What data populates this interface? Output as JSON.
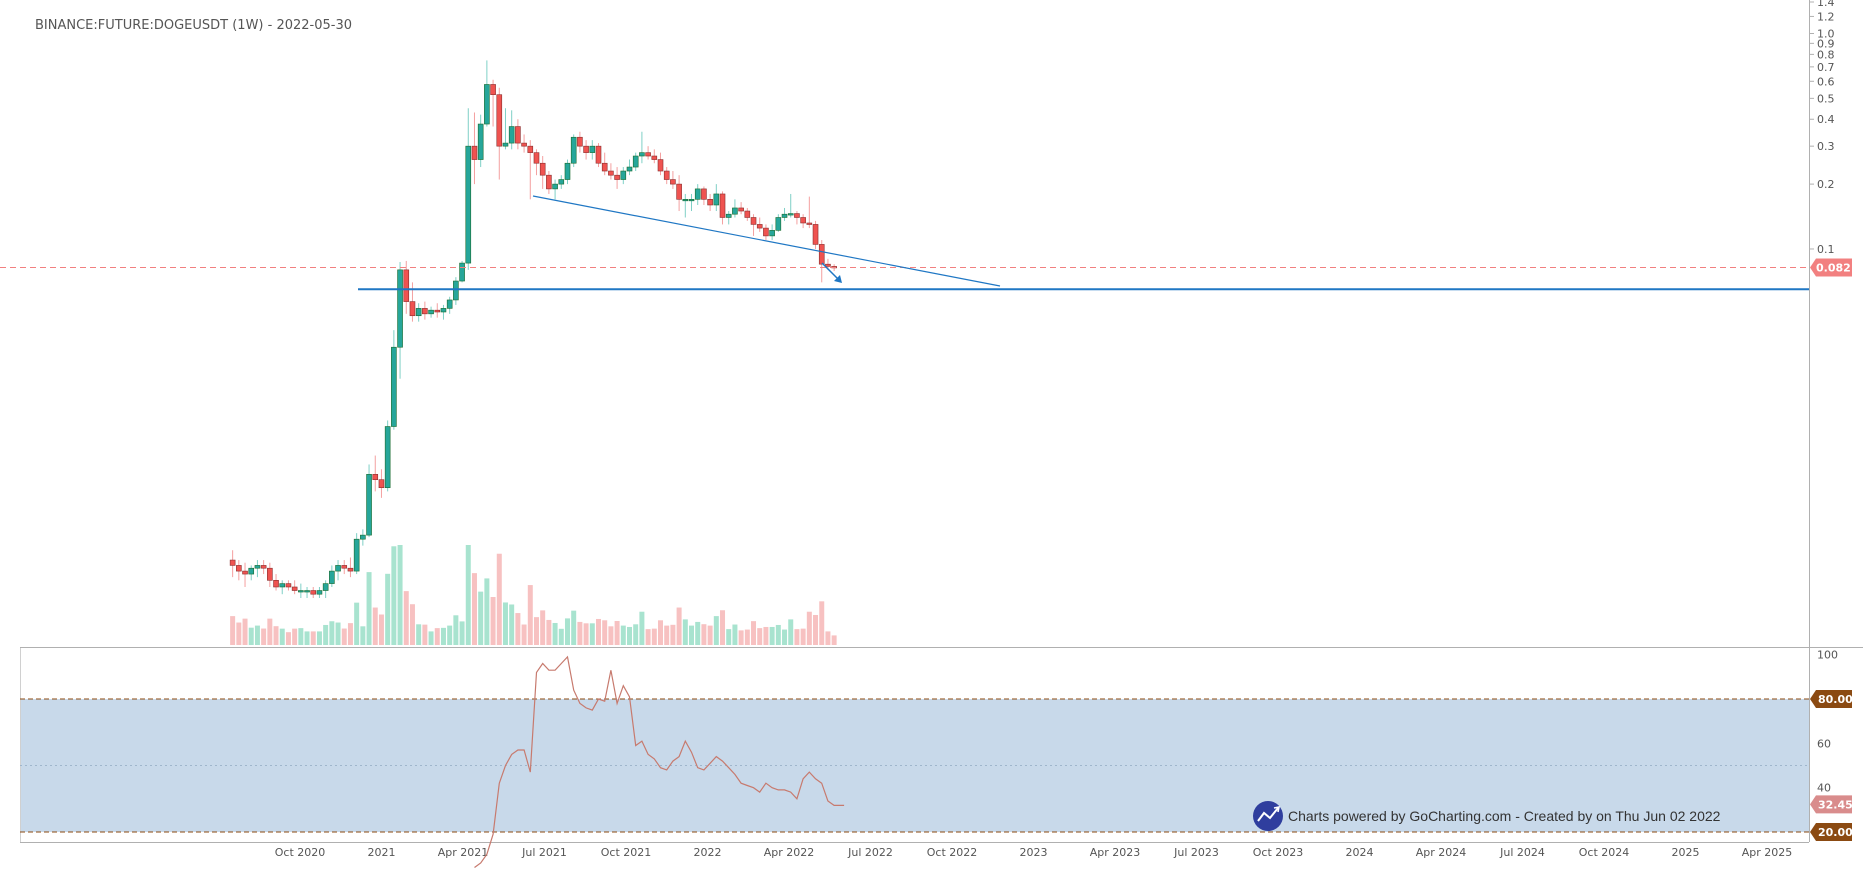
{
  "chart_data": [
    {
      "type": "candlestick",
      "title": "BINANCE:FUTURE:DOGEUSDT (1W) - 2022-05-30",
      "price_scale": "log",
      "ylim": [
        0.0015,
        1.4
      ],
      "y_ticks": [
        "1.4",
        "1.2",
        "1.0",
        "0.9",
        "0.8",
        "0.7",
        "0.6",
        "0.5",
        "0.4",
        "0.3",
        "0.2",
        "0.1"
      ],
      "x_ticks": [
        "Oct 2020",
        "2021",
        "Apr 2021",
        "Jul 2021",
        "Oct 2021",
        "2022",
        "Apr 2022",
        "Jul 2022",
        "Oct 2022",
        "2023",
        "Apr 2023",
        "Jul 2023",
        "Oct 2023",
        "2024",
        "Apr 2024",
        "Jul 2024",
        "Oct 2024",
        "2025",
        "Apr 2025"
      ],
      "last_price_label": "0.082",
      "support_level": 0.065,
      "colors": {
        "up": "#26a69a",
        "down": "#ef5350",
        "line": "#1f77c4",
        "last_price": "#f28080"
      },
      "candles": [
        {
          "t": "2020-07-13",
          "o": 0.0036,
          "h": 0.004,
          "l": 0.003,
          "c": 0.0034
        },
        {
          "t": "2020-07-20",
          "o": 0.0034,
          "h": 0.0036,
          "l": 0.0029,
          "c": 0.0032
        },
        {
          "t": "2020-07-27",
          "o": 0.0032,
          "h": 0.0035,
          "l": 0.0027,
          "c": 0.0031
        },
        {
          "t": "2020-08-03",
          "o": 0.0031,
          "h": 0.0034,
          "l": 0.0029,
          "c": 0.0033
        },
        {
          "t": "2020-08-10",
          "o": 0.0033,
          "h": 0.0036,
          "l": 0.003,
          "c": 0.0034
        },
        {
          "t": "2020-08-17",
          "o": 0.0034,
          "h": 0.0036,
          "l": 0.0031,
          "c": 0.0033
        },
        {
          "t": "2020-08-24",
          "o": 0.0033,
          "h": 0.0035,
          "l": 0.0027,
          "c": 0.0029
        },
        {
          "t": "2020-08-31",
          "o": 0.0029,
          "h": 0.0031,
          "l": 0.0026,
          "c": 0.0027
        },
        {
          "t": "2020-09-07",
          "o": 0.0027,
          "h": 0.0029,
          "l": 0.0025,
          "c": 0.0028
        },
        {
          "t": "2020-09-14",
          "o": 0.0028,
          "h": 0.0029,
          "l": 0.0026,
          "c": 0.0027
        },
        {
          "t": "2020-09-21",
          "o": 0.0027,
          "h": 0.0029,
          "l": 0.0025,
          "c": 0.0026
        },
        {
          "t": "2020-09-28",
          "o": 0.0026,
          "h": 0.0028,
          "l": 0.0024,
          "c": 0.0026
        },
        {
          "t": "2020-10-05",
          "o": 0.0026,
          "h": 0.0027,
          "l": 0.0024,
          "c": 0.0026
        },
        {
          "t": "2020-10-12",
          "o": 0.0026,
          "h": 0.0027,
          "l": 0.0024,
          "c": 0.0025
        },
        {
          "t": "2020-10-19",
          "o": 0.0025,
          "h": 0.0027,
          "l": 0.0024,
          "c": 0.0026
        },
        {
          "t": "2020-10-26",
          "o": 0.0026,
          "h": 0.0029,
          "l": 0.0024,
          "c": 0.0028
        },
        {
          "t": "2020-11-02",
          "o": 0.0028,
          "h": 0.0034,
          "l": 0.0027,
          "c": 0.0032
        },
        {
          "t": "2020-11-09",
          "o": 0.0032,
          "h": 0.0036,
          "l": 0.0029,
          "c": 0.0034
        },
        {
          "t": "2020-11-16",
          "o": 0.0034,
          "h": 0.0036,
          "l": 0.0031,
          "c": 0.0033
        },
        {
          "t": "2020-11-23",
          "o": 0.0033,
          "h": 0.0037,
          "l": 0.003,
          "c": 0.0032
        },
        {
          "t": "2020-11-30",
          "o": 0.0032,
          "h": 0.0048,
          "l": 0.0031,
          "c": 0.0045
        },
        {
          "t": "2020-12-07",
          "o": 0.0045,
          "h": 0.005,
          "l": 0.0042,
          "c": 0.0047
        },
        {
          "t": "2020-12-14",
          "o": 0.0047,
          "h": 0.01,
          "l": 0.0046,
          "c": 0.009
        },
        {
          "t": "2020-12-21",
          "o": 0.009,
          "h": 0.011,
          "l": 0.0075,
          "c": 0.0085
        },
        {
          "t": "2020-12-28",
          "o": 0.0085,
          "h": 0.0095,
          "l": 0.007,
          "c": 0.0078
        },
        {
          "t": "2021-01-04",
          "o": 0.0078,
          "h": 0.016,
          "l": 0.0075,
          "c": 0.015
        },
        {
          "t": "2021-01-11",
          "o": 0.015,
          "h": 0.042,
          "l": 0.0145,
          "c": 0.035
        },
        {
          "t": "2021-01-18",
          "o": 0.035,
          "h": 0.087,
          "l": 0.025,
          "c": 0.08
        },
        {
          "t": "2021-01-25",
          "o": 0.08,
          "h": 0.088,
          "l": 0.05,
          "c": 0.057
        },
        {
          "t": "2021-02-01",
          "o": 0.057,
          "h": 0.07,
          "l": 0.046,
          "c": 0.049
        },
        {
          "t": "2021-02-08",
          "o": 0.049,
          "h": 0.056,
          "l": 0.046,
          "c": 0.053
        },
        {
          "t": "2021-02-15",
          "o": 0.053,
          "h": 0.057,
          "l": 0.047,
          "c": 0.05
        },
        {
          "t": "2021-02-22",
          "o": 0.05,
          "h": 0.054,
          "l": 0.048,
          "c": 0.052
        },
        {
          "t": "2021-03-01",
          "o": 0.052,
          "h": 0.056,
          "l": 0.048,
          "c": 0.051
        },
        {
          "t": "2021-03-08",
          "o": 0.051,
          "h": 0.055,
          "l": 0.047,
          "c": 0.053
        },
        {
          "t": "2021-03-15",
          "o": 0.053,
          "h": 0.06,
          "l": 0.05,
          "c": 0.058
        },
        {
          "t": "2021-03-22",
          "o": 0.058,
          "h": 0.074,
          "l": 0.055,
          "c": 0.071
        },
        {
          "t": "2021-03-29",
          "o": 0.071,
          "h": 0.088,
          "l": 0.07,
          "c": 0.086
        },
        {
          "t": "2021-04-05",
          "o": 0.086,
          "h": 0.45,
          "l": 0.08,
          "c": 0.3
        },
        {
          "t": "2021-04-12",
          "o": 0.3,
          "h": 0.43,
          "l": 0.2,
          "c": 0.26
        },
        {
          "t": "2021-04-19",
          "o": 0.26,
          "h": 0.42,
          "l": 0.24,
          "c": 0.38
        },
        {
          "t": "2021-04-26",
          "o": 0.38,
          "h": 0.75,
          "l": 0.37,
          "c": 0.58
        },
        {
          "t": "2021-05-03",
          "o": 0.58,
          "h": 0.61,
          "l": 0.37,
          "c": 0.52
        },
        {
          "t": "2021-05-10",
          "o": 0.52,
          "h": 0.56,
          "l": 0.21,
          "c": 0.3
        },
        {
          "t": "2021-05-17",
          "o": 0.3,
          "h": 0.45,
          "l": 0.29,
          "c": 0.31
        },
        {
          "t": "2021-05-24",
          "o": 0.31,
          "h": 0.44,
          "l": 0.29,
          "c": 0.37
        },
        {
          "t": "2021-05-31",
          "o": 0.37,
          "h": 0.4,
          "l": 0.29,
          "c": 0.31
        },
        {
          "t": "2021-06-07",
          "o": 0.31,
          "h": 0.34,
          "l": 0.28,
          "c": 0.3
        },
        {
          "t": "2021-06-14",
          "o": 0.3,
          "h": 0.32,
          "l": 0.17,
          "c": 0.28
        },
        {
          "t": "2021-06-21",
          "o": 0.28,
          "h": 0.29,
          "l": 0.22,
          "c": 0.25
        },
        {
          "t": "2021-06-28",
          "o": 0.25,
          "h": 0.27,
          "l": 0.19,
          "c": 0.22
        },
        {
          "t": "2021-07-05",
          "o": 0.22,
          "h": 0.23,
          "l": 0.18,
          "c": 0.19
        },
        {
          "t": "2021-07-12",
          "o": 0.19,
          "h": 0.21,
          "l": 0.17,
          "c": 0.2
        },
        {
          "t": "2021-07-19",
          "o": 0.2,
          "h": 0.22,
          "l": 0.19,
          "c": 0.21
        },
        {
          "t": "2021-07-26",
          "o": 0.21,
          "h": 0.26,
          "l": 0.2,
          "c": 0.25
        },
        {
          "t": "2021-08-02",
          "o": 0.25,
          "h": 0.34,
          "l": 0.24,
          "c": 0.33
        },
        {
          "t": "2021-08-09",
          "o": 0.33,
          "h": 0.35,
          "l": 0.28,
          "c": 0.3
        },
        {
          "t": "2021-08-16",
          "o": 0.3,
          "h": 0.32,
          "l": 0.26,
          "c": 0.28
        },
        {
          "t": "2021-08-23",
          "o": 0.28,
          "h": 0.32,
          "l": 0.26,
          "c": 0.3
        },
        {
          "t": "2021-08-30",
          "o": 0.3,
          "h": 0.31,
          "l": 0.24,
          "c": 0.25
        },
        {
          "t": "2021-09-06",
          "o": 0.25,
          "h": 0.28,
          "l": 0.22,
          "c": 0.23
        },
        {
          "t": "2021-09-13",
          "o": 0.23,
          "h": 0.25,
          "l": 0.21,
          "c": 0.22
        },
        {
          "t": "2021-09-20",
          "o": 0.22,
          "h": 0.24,
          "l": 0.19,
          "c": 0.21
        },
        {
          "t": "2021-09-27",
          "o": 0.21,
          "h": 0.24,
          "l": 0.2,
          "c": 0.23
        },
        {
          "t": "2021-10-04",
          "o": 0.23,
          "h": 0.26,
          "l": 0.22,
          "c": 0.24
        },
        {
          "t": "2021-10-11",
          "o": 0.24,
          "h": 0.28,
          "l": 0.23,
          "c": 0.27
        },
        {
          "t": "2021-10-18",
          "o": 0.27,
          "h": 0.35,
          "l": 0.25,
          "c": 0.28
        },
        {
          "t": "2021-10-25",
          "o": 0.28,
          "h": 0.3,
          "l": 0.26,
          "c": 0.27
        },
        {
          "t": "2021-11-01",
          "o": 0.27,
          "h": 0.29,
          "l": 0.25,
          "c": 0.26
        },
        {
          "t": "2021-11-08",
          "o": 0.26,
          "h": 0.28,
          "l": 0.22,
          "c": 0.23
        },
        {
          "t": "2021-11-15",
          "o": 0.23,
          "h": 0.24,
          "l": 0.2,
          "c": 0.21
        },
        {
          "t": "2021-11-22",
          "o": 0.21,
          "h": 0.23,
          "l": 0.19,
          "c": 0.2
        },
        {
          "t": "2021-11-29",
          "o": 0.2,
          "h": 0.22,
          "l": 0.15,
          "c": 0.17
        },
        {
          "t": "2021-12-06",
          "o": 0.17,
          "h": 0.18,
          "l": 0.14,
          "c": 0.17
        },
        {
          "t": "2021-12-13",
          "o": 0.17,
          "h": 0.18,
          "l": 0.15,
          "c": 0.17
        },
        {
          "t": "2021-12-20",
          "o": 0.17,
          "h": 0.2,
          "l": 0.16,
          "c": 0.19
        },
        {
          "t": "2021-12-27",
          "o": 0.19,
          "h": 0.195,
          "l": 0.16,
          "c": 0.17
        },
        {
          "t": "2022-01-03",
          "o": 0.17,
          "h": 0.18,
          "l": 0.15,
          "c": 0.16
        },
        {
          "t": "2022-01-10",
          "o": 0.16,
          "h": 0.2,
          "l": 0.15,
          "c": 0.18
        },
        {
          "t": "2022-01-17",
          "o": 0.18,
          "h": 0.185,
          "l": 0.13,
          "c": 0.14
        },
        {
          "t": "2022-01-24",
          "o": 0.14,
          "h": 0.15,
          "l": 0.13,
          "c": 0.145
        },
        {
          "t": "2022-01-31",
          "o": 0.145,
          "h": 0.17,
          "l": 0.14,
          "c": 0.155
        },
        {
          "t": "2022-02-07",
          "o": 0.155,
          "h": 0.165,
          "l": 0.145,
          "c": 0.15
        },
        {
          "t": "2022-02-14",
          "o": 0.15,
          "h": 0.155,
          "l": 0.135,
          "c": 0.14
        },
        {
          "t": "2022-02-21",
          "o": 0.14,
          "h": 0.145,
          "l": 0.115,
          "c": 0.13
        },
        {
          "t": "2022-02-28",
          "o": 0.13,
          "h": 0.14,
          "l": 0.12,
          "c": 0.125
        },
        {
          "t": "2022-03-07",
          "o": 0.125,
          "h": 0.13,
          "l": 0.11,
          "c": 0.115
        },
        {
          "t": "2022-03-14",
          "o": 0.115,
          "h": 0.13,
          "l": 0.11,
          "c": 0.122
        },
        {
          "t": "2022-03-21",
          "o": 0.122,
          "h": 0.145,
          "l": 0.12,
          "c": 0.14
        },
        {
          "t": "2022-03-28",
          "o": 0.14,
          "h": 0.155,
          "l": 0.135,
          "c": 0.145
        },
        {
          "t": "2022-04-04",
          "o": 0.145,
          "h": 0.18,
          "l": 0.14,
          "c": 0.146
        },
        {
          "t": "2022-04-11",
          "o": 0.146,
          "h": 0.15,
          "l": 0.13,
          "c": 0.14
        },
        {
          "t": "2022-04-18",
          "o": 0.14,
          "h": 0.145,
          "l": 0.125,
          "c": 0.132
        },
        {
          "t": "2022-04-25",
          "o": 0.132,
          "h": 0.175,
          "l": 0.125,
          "c": 0.13
        },
        {
          "t": "2022-05-02",
          "o": 0.13,
          "h": 0.135,
          "l": 0.1,
          "c": 0.105
        },
        {
          "t": "2022-05-09",
          "o": 0.105,
          "h": 0.11,
          "l": 0.07,
          "c": 0.085
        },
        {
          "t": "2022-05-16",
          "o": 0.085,
          "h": 0.09,
          "l": 0.08,
          "c": 0.083
        },
        {
          "t": "2022-05-23",
          "o": 0.083,
          "h": 0.085,
          "l": 0.079,
          "c": 0.082
        }
      ]
    },
    {
      "type": "line",
      "series": [
        {
          "values": [
            4,
            6,
            10,
            19,
            42,
            50,
            55,
            57,
            57,
            47,
            92,
            96,
            93,
            93,
            96,
            99,
            84,
            78,
            76,
            75,
            80,
            79,
            93,
            78,
            86,
            81,
            59,
            61,
            55,
            53,
            49,
            48,
            52,
            54,
            61,
            56,
            49,
            48,
            51,
            54,
            52,
            49,
            46,
            42,
            41,
            40,
            38,
            42,
            40,
            39,
            39,
            38,
            35,
            44,
            47,
            44,
            42,
            34,
            32
          ]
        }
      ],
      "ylim": [
        0,
        100
      ],
      "y_ticks": [
        "100",
        "60",
        "40"
      ],
      "band_levels": [
        {
          "value": 80,
          "label": "80.00"
        },
        {
          "value": 20,
          "label": "20.00"
        }
      ],
      "last_value_label": "32.45",
      "colors": {
        "line": "#c77a6e",
        "band": "#c8d9ea",
        "level": "#8b4a12",
        "last_value": "#d98c8c"
      }
    }
  ],
  "footer": {
    "credit": "Charts powered by GoCharting.com - Created by  on Thu Jun 02 2022",
    "logo_icon": "chart-trend-icon"
  }
}
